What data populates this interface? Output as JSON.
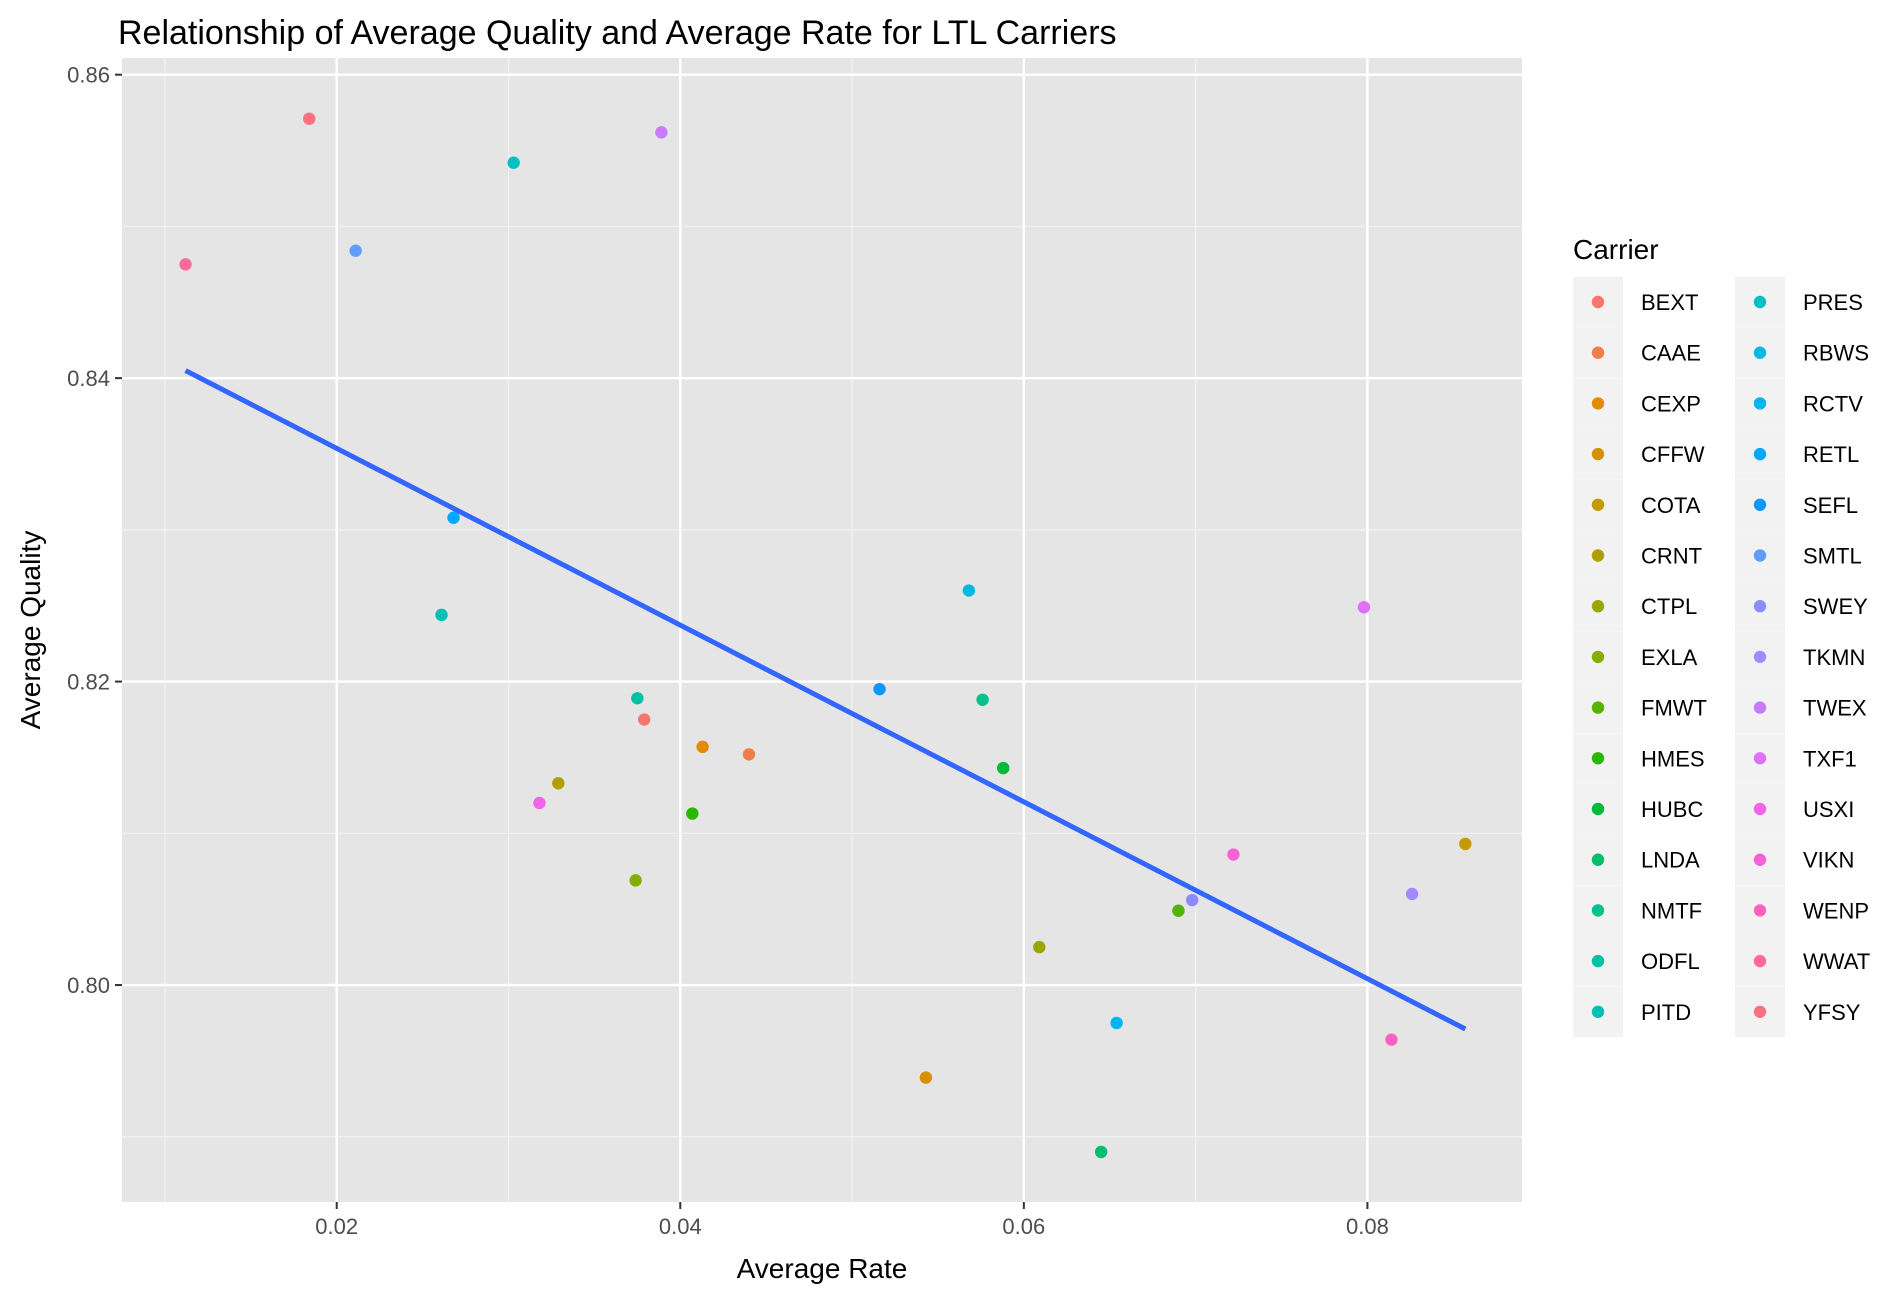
{
  "chart_data": {
    "type": "scatter",
    "title": "Relationship of Average Quality and Average Rate for LTL Carriers",
    "xlabel": "Average Rate",
    "ylabel": "Average Quality",
    "xlim": [
      0.0075,
      0.089
    ],
    "ylim": [
      0.7857,
      0.8611
    ],
    "x_ticks": [
      0.02,
      0.04,
      0.06,
      0.08
    ],
    "x_tick_labels": [
      "0.02",
      "0.04",
      "0.06",
      "0.08"
    ],
    "y_ticks": [
      0.8,
      0.82,
      0.84,
      0.86
    ],
    "y_tick_labels": [
      "0.80",
      "0.82",
      "0.84",
      "0.86"
    ],
    "grid": true,
    "background": "#e5e5e5",
    "legend": {
      "title": "Carrier",
      "position": "right",
      "columns": 2
    },
    "trend_line": {
      "x": [
        0.0112,
        0.0857
      ],
      "y": [
        0.8405,
        0.7971
      ],
      "color": "#3366ff"
    },
    "series": [
      {
        "name": "BEXT",
        "color": "#f8766d",
        "x": 0.0379,
        "y": 0.8175
      },
      {
        "name": "CAAE",
        "color": "#ef7f47",
        "x": 0.044,
        "y": 0.8152
      },
      {
        "name": "CEXP",
        "color": "#e28a00",
        "x": 0.0413,
        "y": 0.8157
      },
      {
        "name": "CFFW",
        "color": "#d69100",
        "x": 0.0543,
        "y": 0.7939
      },
      {
        "name": "COTA",
        "color": "#c49a00",
        "x": 0.0857,
        "y": 0.8093
      },
      {
        "name": "CRNT",
        "color": "#b09d00",
        "x": 0.0329,
        "y": 0.8133
      },
      {
        "name": "CTPL",
        "color": "#99a600",
        "x": 0.0609,
        "y": 0.8025
      },
      {
        "name": "EXLA",
        "color": "#85ad00",
        "x": 0.0374,
        "y": 0.8069
      },
      {
        "name": "FMWT",
        "color": "#53b400",
        "x": 0.069,
        "y": 0.8049
      },
      {
        "name": "HMES",
        "color": "#2bb600",
        "x": 0.0407,
        "y": 0.8113
      },
      {
        "name": "HUBC",
        "color": "#00ba38",
        "x": 0.0588,
        "y": 0.8143
      },
      {
        "name": "LNDA",
        "color": "#00be6b",
        "x": 0.0645,
        "y": 0.789
      },
      {
        "name": "NMTF",
        "color": "#00c08b",
        "x": 0.0576,
        "y": 0.8188
      },
      {
        "name": "ODFL",
        "color": "#00c1a3",
        "x": 0.0375,
        "y": 0.8189
      },
      {
        "name": "PITD",
        "color": "#00bfb6",
        "x": 0.0261,
        "y": 0.8244
      },
      {
        "name": "PRES",
        "color": "#00bfc4",
        "x": 0.0303,
        "y": 0.8542
      },
      {
        "name": "RBWS",
        "color": "#00b9e3",
        "x": 0.0568,
        "y": 0.826
      },
      {
        "name": "RCTV",
        "color": "#00b4ef",
        "x": 0.0654,
        "y": 0.7975
      },
      {
        "name": "RETL",
        "color": "#00a9ff",
        "x": 0.0268,
        "y": 0.8308
      },
      {
        "name": "SEFL",
        "color": "#0998ff",
        "x": 0.0516,
        "y": 0.8195
      },
      {
        "name": "SMTL",
        "color": "#619cff",
        "x": 0.0211,
        "y": 0.8484
      },
      {
        "name": "SWEY",
        "color": "#8c8cff",
        "x": 0.0698,
        "y": 0.8056
      },
      {
        "name": "TKMN",
        "color": "#a58aff",
        "x": 0.0826,
        "y": 0.806
      },
      {
        "name": "TWEX",
        "color": "#c77cff",
        "x": 0.0389,
        "y": 0.8562
      },
      {
        "name": "TXF1",
        "color": "#df70f8",
        "x": 0.0798,
        "y": 0.8249
      },
      {
        "name": "USXI",
        "color": "#f166e8",
        "x": 0.0318,
        "y": 0.812
      },
      {
        "name": "VIKN",
        "color": "#fb61d7",
        "x": 0.0722,
        "y": 0.8086
      },
      {
        "name": "WENP",
        "color": "#ff62bc",
        "x": 0.0814,
        "y": 0.7964
      },
      {
        "name": "WWAT",
        "color": "#ff6a98",
        "x": 0.0112,
        "y": 0.8475
      },
      {
        "name": "YFSY",
        "color": "#fc717f",
        "x": 0.0184,
        "y": 0.8571
      }
    ]
  }
}
